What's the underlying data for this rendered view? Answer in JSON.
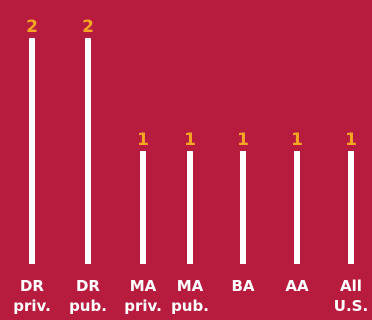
{
  "chart_data": {
    "type": "bar",
    "categories": [
      [
        "DR",
        "priv."
      ],
      [
        "DR",
        "pub."
      ],
      [
        "MA",
        "priv."
      ],
      [
        "MA",
        "pub."
      ],
      [
        "BA"
      ],
      [
        "AA"
      ],
      [
        "All",
        "U.S."
      ]
    ],
    "values": [
      2,
      2,
      1,
      1,
      1,
      1,
      1
    ],
    "data_labels": [
      "2",
      "2",
      "1",
      "1",
      "1",
      "1",
      "1"
    ],
    "ylim": [
      0,
      2
    ],
    "grid": false,
    "legend": "none"
  },
  "colors": {
    "background": "#b71c3e",
    "bar": "#ffffff",
    "value_label": "#f5a623",
    "category_label": "#ffffff"
  }
}
